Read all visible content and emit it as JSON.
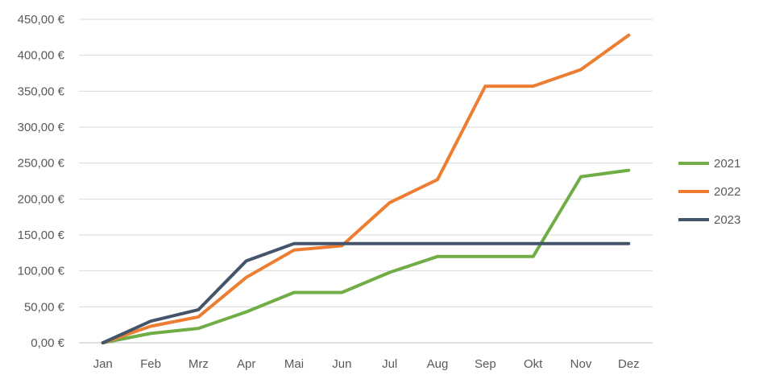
{
  "chart_data": {
    "type": "line",
    "categories": [
      "Jan",
      "Feb",
      "Mrz",
      "Apr",
      "Mai",
      "Jun",
      "Jul",
      "Aug",
      "Sep",
      "Okt",
      "Nov",
      "Dez"
    ],
    "series": [
      {
        "name": "2021",
        "color": "#70AD47",
        "values": [
          0,
          13,
          20,
          43,
          70,
          70,
          98,
          120,
          120,
          120,
          231,
          240
        ]
      },
      {
        "name": "2022",
        "color": "#ED7D31",
        "values": [
          0,
          23,
          36,
          91,
          129,
          135,
          195,
          227,
          357,
          357,
          380,
          428
        ]
      },
      {
        "name": "2023",
        "color": "#44546A",
        "values": [
          0,
          30,
          46,
          114,
          138,
          138,
          138,
          138,
          138,
          138,
          138,
          138
        ]
      }
    ],
    "y_ticks": [
      "0,00 €",
      "50,00 €",
      "100,00 €",
      "150,00 €",
      "200,00 €",
      "250,00 €",
      "300,00 €",
      "350,00 €",
      "400,00 €",
      "450,00 €"
    ],
    "ylim": [
      0,
      450
    ],
    "y_step": 50,
    "grid": true,
    "legend_position": "right"
  }
}
